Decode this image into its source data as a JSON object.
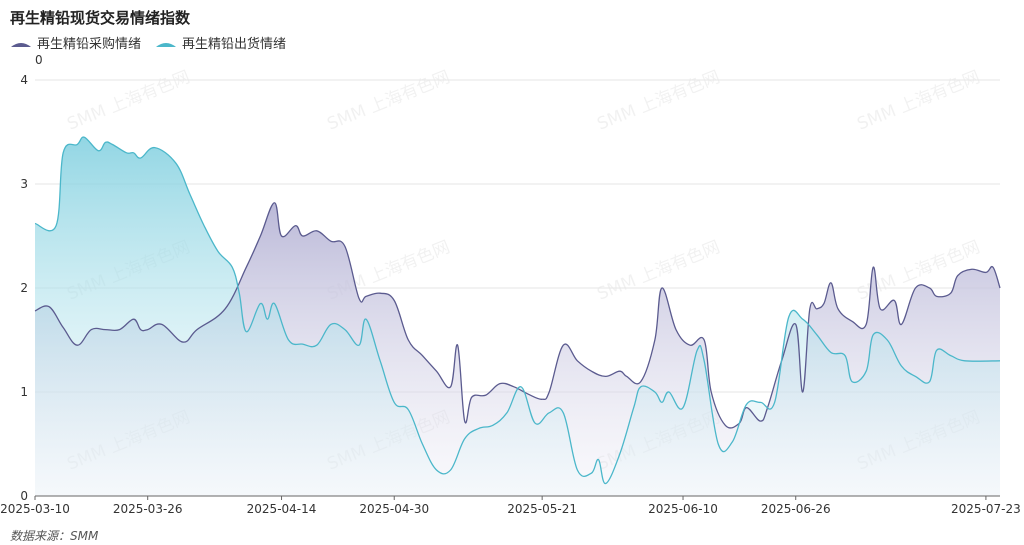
{
  "title": "再生精铅现货交易情绪指数",
  "unit_label": "0",
  "source": "数据来源：SMM",
  "watermark": "SMM 上海有色网",
  "colors": {
    "purchase_line": "#5b5b8f",
    "purchase_fill": "#c4c3dc",
    "shipment_line": "#4bb7ca",
    "shipment_fill": "#8fd3e0",
    "grid": "#e6e6e6",
    "axis": "#999999"
  },
  "chart_data": {
    "type": "area",
    "title": "再生精铅现货交易情绪指数",
    "xlabel": "",
    "ylabel": "",
    "ylim": [
      0,
      4
    ],
    "y_ticks": [
      0,
      1,
      2,
      3,
      4
    ],
    "x_range": [
      "2025-03-10",
      "2025-07-25"
    ],
    "x_tick_labels": [
      "2025-03-10",
      "2025-03-26",
      "2025-04-14",
      "2025-04-30",
      "2025-05-21",
      "2025-06-10",
      "2025-06-26",
      "2025-07-23"
    ],
    "grid": true,
    "legend": "top-left",
    "series": [
      {
        "name": "再生精铅采购情绪",
        "points": [
          [
            "2025-03-10",
            1.78
          ],
          [
            "2025-03-12",
            1.82
          ],
          [
            "2025-03-14",
            1.62
          ],
          [
            "2025-03-16",
            1.45
          ],
          [
            "2025-03-18",
            1.6
          ],
          [
            "2025-03-20",
            1.6
          ],
          [
            "2025-03-22",
            1.6
          ],
          [
            "2025-03-24",
            1.7
          ],
          [
            "2025-03-25",
            1.6
          ],
          [
            "2025-03-26",
            1.6
          ],
          [
            "2025-03-28",
            1.65
          ],
          [
            "2025-03-31",
            1.48
          ],
          [
            "2025-04-02",
            1.6
          ],
          [
            "2025-04-06",
            1.8
          ],
          [
            "2025-04-09",
            2.2
          ],
          [
            "2025-04-11",
            2.5
          ],
          [
            "2025-04-13",
            2.82
          ],
          [
            "2025-04-14",
            2.5
          ],
          [
            "2025-04-16",
            2.6
          ],
          [
            "2025-04-17",
            2.5
          ],
          [
            "2025-04-19",
            2.55
          ],
          [
            "2025-04-21",
            2.45
          ],
          [
            "2025-04-23",
            2.4
          ],
          [
            "2025-04-25",
            1.9
          ],
          [
            "2025-04-26",
            1.92
          ],
          [
            "2025-04-28",
            1.95
          ],
          [
            "2025-04-30",
            1.88
          ],
          [
            "2025-05-02",
            1.5
          ],
          [
            "2025-05-04",
            1.35
          ],
          [
            "2025-05-06",
            1.2
          ],
          [
            "2025-05-08",
            1.05
          ],
          [
            "2025-05-09",
            1.45
          ],
          [
            "2025-05-10",
            0.72
          ],
          [
            "2025-05-11",
            0.95
          ],
          [
            "2025-05-13",
            0.97
          ],
          [
            "2025-05-15",
            1.08
          ],
          [
            "2025-05-17",
            1.05
          ],
          [
            "2025-05-19",
            0.98
          ],
          [
            "2025-05-21",
            0.93
          ],
          [
            "2025-05-22",
            1.0
          ],
          [
            "2025-05-24",
            1.45
          ],
          [
            "2025-05-26",
            1.3
          ],
          [
            "2025-05-28",
            1.2
          ],
          [
            "2025-05-30",
            1.15
          ],
          [
            "2025-06-01",
            1.2
          ],
          [
            "2025-06-02",
            1.15
          ],
          [
            "2025-06-04",
            1.1
          ],
          [
            "2025-06-06",
            1.5
          ],
          [
            "2025-06-07",
            2.0
          ],
          [
            "2025-06-09",
            1.6
          ],
          [
            "2025-06-11",
            1.45
          ],
          [
            "2025-06-13",
            1.5
          ],
          [
            "2025-06-14",
            1.0
          ],
          [
            "2025-06-16",
            0.68
          ],
          [
            "2025-06-18",
            0.7
          ],
          [
            "2025-06-19",
            0.85
          ],
          [
            "2025-06-21",
            0.72
          ],
          [
            "2025-06-22",
            0.85
          ],
          [
            "2025-06-24",
            1.3
          ],
          [
            "2025-06-26",
            1.65
          ],
          [
            "2025-06-27",
            1.0
          ],
          [
            "2025-06-28",
            1.8
          ],
          [
            "2025-06-29",
            1.8
          ],
          [
            "2025-06-30",
            1.85
          ],
          [
            "2025-07-01",
            2.05
          ],
          [
            "2025-07-02",
            1.8
          ],
          [
            "2025-07-04",
            1.68
          ],
          [
            "2025-07-06",
            1.65
          ],
          [
            "2025-07-07",
            2.2
          ],
          [
            "2025-07-08",
            1.8
          ],
          [
            "2025-07-10",
            1.88
          ],
          [
            "2025-07-11",
            1.65
          ],
          [
            "2025-07-13",
            2.0
          ],
          [
            "2025-07-15",
            2.0
          ],
          [
            "2025-07-16",
            1.92
          ],
          [
            "2025-07-18",
            1.95
          ],
          [
            "2025-07-19",
            2.12
          ],
          [
            "2025-07-21",
            2.18
          ],
          [
            "2025-07-23",
            2.15
          ],
          [
            "2025-07-24",
            2.2
          ],
          [
            "2025-07-25",
            2.0
          ]
        ]
      },
      {
        "name": "再生精铅出货情绪",
        "points": [
          [
            "2025-03-10",
            2.62
          ],
          [
            "2025-03-13",
            2.6
          ],
          [
            "2025-03-14",
            3.3
          ],
          [
            "2025-03-16",
            3.38
          ],
          [
            "2025-03-17",
            3.45
          ],
          [
            "2025-03-19",
            3.32
          ],
          [
            "2025-03-20",
            3.4
          ],
          [
            "2025-03-21",
            3.38
          ],
          [
            "2025-03-23",
            3.3
          ],
          [
            "2025-03-24",
            3.3
          ],
          [
            "2025-03-25",
            3.25
          ],
          [
            "2025-03-27",
            3.35
          ],
          [
            "2025-03-30",
            3.2
          ],
          [
            "2025-04-01",
            2.9
          ],
          [
            "2025-04-03",
            2.6
          ],
          [
            "2025-04-05",
            2.35
          ],
          [
            "2025-04-07",
            2.2
          ],
          [
            "2025-04-08",
            1.95
          ],
          [
            "2025-04-09",
            1.58
          ],
          [
            "2025-04-11",
            1.85
          ],
          [
            "2025-04-12",
            1.7
          ],
          [
            "2025-04-13",
            1.85
          ],
          [
            "2025-04-15",
            1.5
          ],
          [
            "2025-04-17",
            1.46
          ],
          [
            "2025-04-19",
            1.45
          ],
          [
            "2025-04-21",
            1.65
          ],
          [
            "2025-04-23",
            1.6
          ],
          [
            "2025-04-25",
            1.45
          ],
          [
            "2025-04-26",
            1.7
          ],
          [
            "2025-04-28",
            1.3
          ],
          [
            "2025-04-30",
            0.9
          ],
          [
            "2025-05-02",
            0.83
          ],
          [
            "2025-05-04",
            0.5
          ],
          [
            "2025-05-06",
            0.25
          ],
          [
            "2025-05-08",
            0.25
          ],
          [
            "2025-05-10",
            0.55
          ],
          [
            "2025-05-12",
            0.65
          ],
          [
            "2025-05-14",
            0.68
          ],
          [
            "2025-05-16",
            0.8
          ],
          [
            "2025-05-18",
            1.05
          ],
          [
            "2025-05-20",
            0.7
          ],
          [
            "2025-05-22",
            0.8
          ],
          [
            "2025-05-24",
            0.8
          ],
          [
            "2025-05-26",
            0.25
          ],
          [
            "2025-05-28",
            0.22
          ],
          [
            "2025-05-29",
            0.35
          ],
          [
            "2025-05-30",
            0.12
          ],
          [
            "2025-06-01",
            0.4
          ],
          [
            "2025-06-03",
            0.85
          ],
          [
            "2025-06-04",
            1.05
          ],
          [
            "2025-06-06",
            1.0
          ],
          [
            "2025-06-07",
            0.9
          ],
          [
            "2025-06-08",
            1.0
          ],
          [
            "2025-06-10",
            0.85
          ],
          [
            "2025-06-12",
            1.4
          ],
          [
            "2025-06-13",
            1.3
          ],
          [
            "2025-06-15",
            0.5
          ],
          [
            "2025-06-17",
            0.52
          ],
          [
            "2025-06-19",
            0.88
          ],
          [
            "2025-06-21",
            0.9
          ],
          [
            "2025-06-23",
            0.9
          ],
          [
            "2025-06-25",
            1.72
          ],
          [
            "2025-06-27",
            1.7
          ],
          [
            "2025-06-29",
            1.55
          ],
          [
            "2025-07-01",
            1.38
          ],
          [
            "2025-07-03",
            1.35
          ],
          [
            "2025-07-04",
            1.1
          ],
          [
            "2025-07-06",
            1.2
          ],
          [
            "2025-07-07",
            1.55
          ],
          [
            "2025-07-09",
            1.5
          ],
          [
            "2025-07-11",
            1.25
          ],
          [
            "2025-07-13",
            1.15
          ],
          [
            "2025-07-15",
            1.1
          ],
          [
            "2025-07-16",
            1.4
          ],
          [
            "2025-07-18",
            1.35
          ],
          [
            "2025-07-20",
            1.3
          ],
          [
            "2025-07-25",
            1.3
          ]
        ]
      }
    ]
  }
}
